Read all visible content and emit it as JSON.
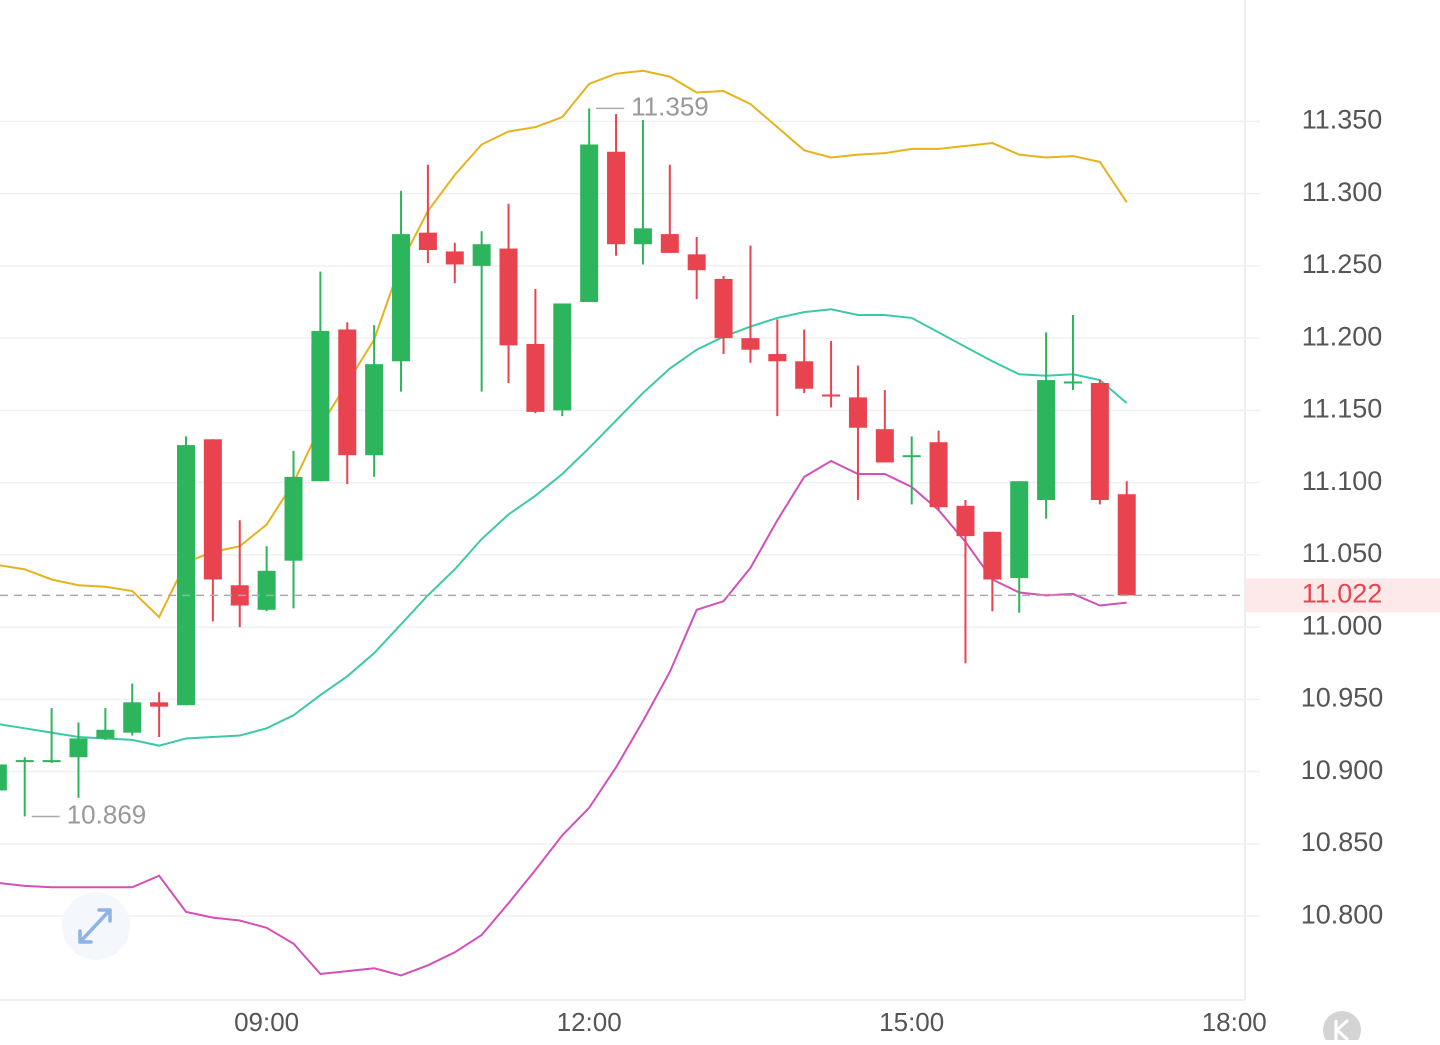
{
  "chart_data": {
    "type": "candlestick",
    "x": [
      6.5,
      6.75,
      7.0,
      7.25,
      7.5,
      7.75,
      8.0,
      8.25,
      8.5,
      8.75,
      9.0,
      9.25,
      9.5,
      9.75,
      10.0,
      10.25,
      10.5,
      10.75,
      11.0,
      11.25,
      11.5,
      11.75,
      12.0,
      12.25,
      12.5,
      12.75,
      13.0,
      13.25,
      13.5,
      13.75,
      14.0,
      14.25,
      14.5,
      14.75,
      15.0,
      15.25,
      15.5,
      15.75,
      16.0,
      16.25,
      16.5,
      16.75,
      17.0
    ],
    "open": [
      10.887,
      10.908,
      10.907,
      10.91,
      10.923,
      10.927,
      10.948,
      10.946,
      11.13,
      11.029,
      11.012,
      11.046,
      11.101,
      11.206,
      11.119,
      11.184,
      11.273,
      11.26,
      11.25,
      11.262,
      11.196,
      11.15,
      11.225,
      11.329,
      11.265,
      11.272,
      11.258,
      11.241,
      11.2,
      11.189,
      11.184,
      11.161,
      11.159,
      11.137,
      11.118,
      11.128,
      11.084,
      11.066,
      11.034,
      11.088,
      11.169,
      11.169,
      11.092
    ],
    "high": [
      10.908,
      10.91,
      10.944,
      10.934,
      10.944,
      10.961,
      10.955,
      11.132,
      11.13,
      11.074,
      11.056,
      11.122,
      11.246,
      11.211,
      11.209,
      11.302,
      11.32,
      11.266,
      11.274,
      11.293,
      11.234,
      11.224,
      11.359,
      11.355,
      11.351,
      11.32,
      11.27,
      11.243,
      11.264,
      11.213,
      11.206,
      11.198,
      11.181,
      11.164,
      11.132,
      11.136,
      11.088,
      11.066,
      11.101,
      11.204,
      11.216,
      11.171,
      11.101
    ],
    "low": [
      10.886,
      10.869,
      10.906,
      10.882,
      10.922,
      10.925,
      10.924,
      10.946,
      11.004,
      11.0,
      11.011,
      11.013,
      11.101,
      11.099,
      11.104,
      11.163,
      11.252,
      11.238,
      11.163,
      11.169,
      11.148,
      11.146,
      11.225,
      11.257,
      11.251,
      11.259,
      11.227,
      11.189,
      11.183,
      11.146,
      11.162,
      11.152,
      11.088,
      11.114,
      11.085,
      11.081,
      10.975,
      11.011,
      11.01,
      11.075,
      11.164,
      11.085,
      11.022
    ],
    "close": [
      10.905,
      10.908,
      10.908,
      10.923,
      10.929,
      10.948,
      10.945,
      11.126,
      11.033,
      11.015,
      11.039,
      11.104,
      11.205,
      11.119,
      11.182,
      11.272,
      11.261,
      11.251,
      11.265,
      11.195,
      11.149,
      11.224,
      11.334,
      11.265,
      11.276,
      11.259,
      11.247,
      11.2,
      11.192,
      11.184,
      11.165,
      11.16,
      11.138,
      11.114,
      11.119,
      11.083,
      11.063,
      11.033,
      11.101,
      11.171,
      11.17,
      11.088,
      11.022
    ],
    "up_color": "#2db55d",
    "down_color": "#e8434f",
    "bands": [
      {
        "color": "#e5b31c",
        "values": [
          11.043,
          11.04,
          11.033,
          11.029,
          11.028,
          11.025,
          11.007,
          11.045,
          11.052,
          11.056,
          11.071,
          11.1,
          11.139,
          11.169,
          11.199,
          11.252,
          11.288,
          11.313,
          11.334,
          11.343,
          11.346,
          11.353,
          11.376,
          11.383,
          11.385,
          11.381,
          11.37,
          11.371,
          11.362,
          11.346,
          11.33,
          11.325,
          11.327,
          11.328,
          11.331,
          11.331,
          11.333,
          11.335,
          11.327,
          11.325,
          11.326,
          11.322,
          11.294
        ]
      },
      {
        "color": "#3cc9a8",
        "values": [
          10.933,
          10.93,
          10.927,
          10.924,
          10.923,
          10.922,
          10.918,
          10.923,
          10.924,
          10.925,
          10.93,
          10.939,
          10.953,
          10.966,
          10.982,
          11.002,
          11.022,
          11.04,
          11.061,
          11.078,
          11.091,
          11.106,
          11.124,
          11.143,
          11.162,
          11.179,
          11.192,
          11.201,
          11.208,
          11.214,
          11.218,
          11.22,
          11.216,
          11.216,
          11.214,
          11.204,
          11.194,
          11.184,
          11.175,
          11.174,
          11.175,
          11.171,
          11.155
        ]
      },
      {
        "color": "#d350b8",
        "values": [
          10.823,
          10.821,
          10.82,
          10.82,
          10.82,
          10.82,
          10.828,
          10.803,
          10.799,
          10.797,
          10.792,
          10.781,
          10.76,
          10.762,
          10.764,
          10.759,
          10.766,
          10.775,
          10.787,
          10.809,
          10.832,
          10.856,
          10.875,
          10.903,
          10.935,
          10.969,
          11.012,
          11.018,
          11.041,
          11.074,
          11.104,
          11.115,
          11.106,
          11.106,
          11.097,
          11.081,
          11.059,
          11.033,
          11.024,
          11.022,
          11.023,
          11.015,
          11.017
        ]
      }
    ],
    "xlim": [
      6.52,
      18.1
    ],
    "ylim": [
      10.742,
      11.434
    ],
    "xticks": [
      {
        "value": 9,
        "label": "09:00"
      },
      {
        "value": 12,
        "label": "12:00"
      },
      {
        "value": 15,
        "label": "15:00"
      },
      {
        "value": 18,
        "label": "18:00"
      }
    ],
    "yticks": [
      {
        "value": 10.8,
        "label": "10.800"
      },
      {
        "value": 10.85,
        "label": "10.850"
      },
      {
        "value": 10.9,
        "label": "10.900"
      },
      {
        "value": 10.95,
        "label": "10.950"
      },
      {
        "value": 11.0,
        "label": "11.000"
      },
      {
        "value": 11.05,
        "label": "11.050"
      },
      {
        "value": 11.1,
        "label": "11.100"
      },
      {
        "value": 11.15,
        "label": "11.150"
      },
      {
        "value": 11.2,
        "label": "11.200"
      },
      {
        "value": 11.25,
        "label": "11.250"
      },
      {
        "value": 11.3,
        "label": "11.300"
      },
      {
        "value": 11.35,
        "label": "11.350"
      }
    ],
    "grid": true,
    "last_price": {
      "value": 11.022,
      "label": "11.022"
    },
    "annotations": [
      {
        "x": 12.0,
        "value": 11.359,
        "label": "11.359"
      },
      {
        "x": 6.75,
        "value": 10.869,
        "label": "10.869"
      }
    ]
  }
}
